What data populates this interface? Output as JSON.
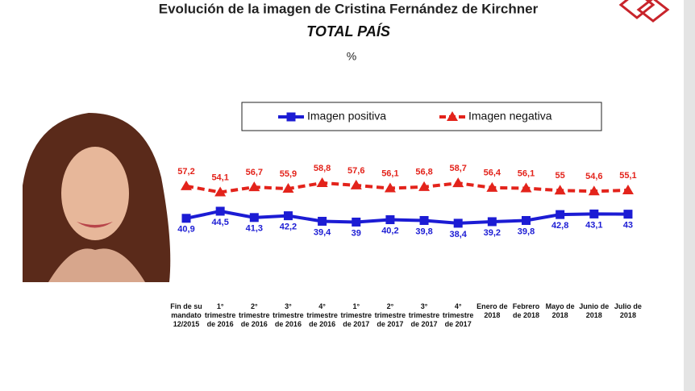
{
  "chart_data": {
    "type": "line",
    "title": "Evolución de la imagen de Cristina Fernández de Kirchner",
    "subtitle": "TOTAL PAÍS",
    "unit": "%",
    "categories": [
      "Fin de su mandato 12/2015",
      "1° trimestre de 2016",
      "2° trimestre de 2016",
      "3° trimestre de 2016",
      "4° trimestre de 2016",
      "1° trimestre de 2017",
      "2° trimestre de 2017",
      "3° trimestre de 2017",
      "4° trimestre de 2017",
      "Enero de 2018",
      "Febrero de 2018",
      "Mayo de 2018",
      "Junio de 2018",
      "Julio de 2018"
    ],
    "series": [
      {
        "name": "Imagen positiva",
        "color": "#1c1cd4",
        "marker": "square",
        "line_style": "solid",
        "label_position": "below",
        "values": [
          40.9,
          44.5,
          41.3,
          42.2,
          39.4,
          39,
          40.2,
          39.8,
          38.4,
          39.2,
          39.8,
          42.8,
          43.1,
          43
        ],
        "value_labels": [
          "40,9",
          "44,5",
          "41,3",
          "42,2",
          "39,4",
          "39",
          "40,2",
          "39,8",
          "38,4",
          "39,2",
          "39,8",
          "42,8",
          "43,1",
          "43"
        ]
      },
      {
        "name": "Imagen negativa",
        "color": "#e3231b",
        "marker": "triangle",
        "line_style": "dashed",
        "label_position": "above",
        "values": [
          57.2,
          54.1,
          56.7,
          55.9,
          58.8,
          57.6,
          56.1,
          56.8,
          58.7,
          56.4,
          56.1,
          55,
          54.6,
          55.1
        ],
        "value_labels": [
          "57,2",
          "54,1",
          "56,7",
          "55,9",
          "58,8",
          "57,6",
          "56,1",
          "56,8",
          "58,7",
          "56,4",
          "56,1",
          "55",
          "54,6",
          "55,1"
        ]
      }
    ],
    "legend": "top"
  }
}
